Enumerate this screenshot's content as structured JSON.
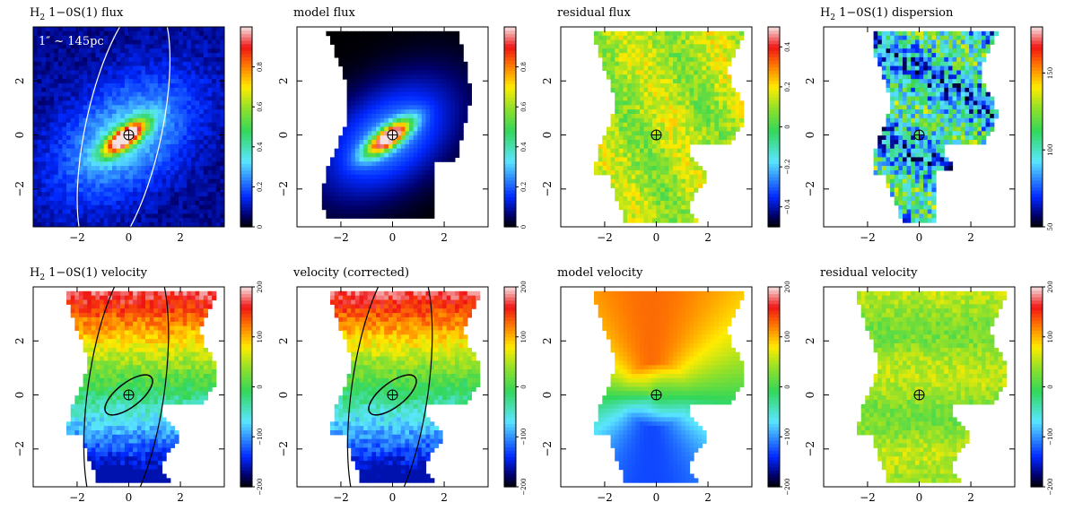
{
  "colors": {
    "frame": "#000000",
    "annotation": "#ffffff",
    "background": "#ffffff"
  },
  "chart_data": [
    {
      "type": "heatmap",
      "title": "1−0S(1) flux",
      "title_prefix": "H",
      "title_sub": "2",
      "colormap": "rainbow",
      "xlim": [
        -3.7,
        3.7
      ],
      "ylim": [
        -3.4,
        4.0
      ],
      "x_ticks": [
        -2,
        0,
        2
      ],
      "y_ticks": [
        -2,
        0,
        2
      ],
      "colorbar": {
        "range": [
          0,
          1
        ],
        "ticks": [
          "0",
          "0.2",
          "0.4",
          "0.6",
          "0.8"
        ]
      },
      "annotation": "1″ ~ 145pc",
      "overlay": "white-ellipse",
      "style": "flux"
    },
    {
      "type": "heatmap",
      "title": "model flux",
      "title_prefix": "",
      "title_sub": "",
      "colormap": "rainbow",
      "xlim": [
        -3.7,
        3.7
      ],
      "ylim": [
        -3.4,
        4.0
      ],
      "x_ticks": [
        -2,
        0,
        2
      ],
      "y_ticks": [
        -2,
        0,
        2
      ],
      "colorbar": {
        "range": [
          0,
          1
        ],
        "ticks": [
          "0",
          "0.2",
          "0.4",
          "0.6",
          "0.8"
        ]
      },
      "annotation": "",
      "overlay": "",
      "style": "model_flux"
    },
    {
      "type": "heatmap",
      "title": "residual flux",
      "title_prefix": "",
      "title_sub": "",
      "colormap": "rainbow",
      "xlim": [
        -3.7,
        3.7
      ],
      "ylim": [
        -3.4,
        4.0
      ],
      "x_ticks": [
        -2,
        0,
        2
      ],
      "y_ticks": [
        -2,
        0,
        2
      ],
      "colorbar": {
        "range": [
          -0.5,
          0.5
        ],
        "ticks": [
          "−0.4",
          "−0.2",
          "0",
          "0.2",
          "0.4"
        ]
      },
      "annotation": "",
      "overlay": "",
      "style": "residual"
    },
    {
      "type": "heatmap",
      "title": "1−0S(1) dispersion",
      "title_prefix": "H",
      "title_sub": "2",
      "colormap": "rainbow",
      "xlim": [
        -3.7,
        3.7
      ],
      "ylim": [
        -3.4,
        4.0
      ],
      "x_ticks": [
        -2,
        0,
        2
      ],
      "y_ticks": [
        -2,
        0,
        2
      ],
      "colorbar": {
        "range": [
          50,
          180
        ],
        "ticks": [
          "50",
          "100",
          "150"
        ]
      },
      "annotation": "",
      "overlay": "",
      "style": "dispersion"
    },
    {
      "type": "heatmap",
      "title": "1−0S(1) velocity",
      "title_prefix": "H",
      "title_sub": "2",
      "colormap": "rainbow",
      "xlim": [
        -3.7,
        3.7
      ],
      "ylim": [
        -3.4,
        4.0
      ],
      "x_ticks": [
        -2,
        0,
        2
      ],
      "y_ticks": [
        -2,
        0,
        2
      ],
      "colorbar": {
        "range": [
          -200,
          200
        ],
        "ticks": [
          "−200",
          "−100",
          "0",
          "100",
          "200"
        ]
      },
      "annotation": "",
      "overlay": "black-ellipses",
      "style": "velocity"
    },
    {
      "type": "heatmap",
      "title": "velocity (corrected)",
      "title_prefix": "",
      "title_sub": "",
      "colormap": "rainbow",
      "xlim": [
        -3.7,
        3.7
      ],
      "ylim": [
        -3.4,
        4.0
      ],
      "x_ticks": [
        -2,
        0,
        2
      ],
      "y_ticks": [
        -2,
        0,
        2
      ],
      "colorbar": {
        "range": [
          -200,
          200
        ],
        "ticks": [
          "−200",
          "−100",
          "0",
          "100",
          "200"
        ]
      },
      "annotation": "",
      "overlay": "black-ellipses",
      "style": "velocity"
    },
    {
      "type": "heatmap",
      "title": "model velocity",
      "title_prefix": "",
      "title_sub": "",
      "colormap": "rainbow",
      "xlim": [
        -3.7,
        3.7
      ],
      "ylim": [
        -3.4,
        4.0
      ],
      "x_ticks": [
        -2,
        0,
        2
      ],
      "y_ticks": [
        -2,
        0,
        2
      ],
      "colorbar": {
        "range": [
          -200,
          200
        ],
        "ticks": [
          "−200",
          "−100",
          "0",
          "100",
          "200"
        ]
      },
      "annotation": "",
      "overlay": "",
      "style": "model_velocity"
    },
    {
      "type": "heatmap",
      "title": "residual velocity",
      "title_prefix": "",
      "title_sub": "",
      "colormap": "rainbow",
      "xlim": [
        -3.7,
        3.7
      ],
      "ylim": [
        -3.4,
        4.0
      ],
      "x_ticks": [
        -2,
        0,
        2
      ],
      "y_ticks": [
        -2,
        0,
        2
      ],
      "colorbar": {
        "range": [
          -200,
          200
        ],
        "ticks": [
          "−200",
          "−100",
          "0",
          "100",
          "200"
        ]
      },
      "annotation": "",
      "overlay": "",
      "style": "residual_velocity"
    }
  ]
}
